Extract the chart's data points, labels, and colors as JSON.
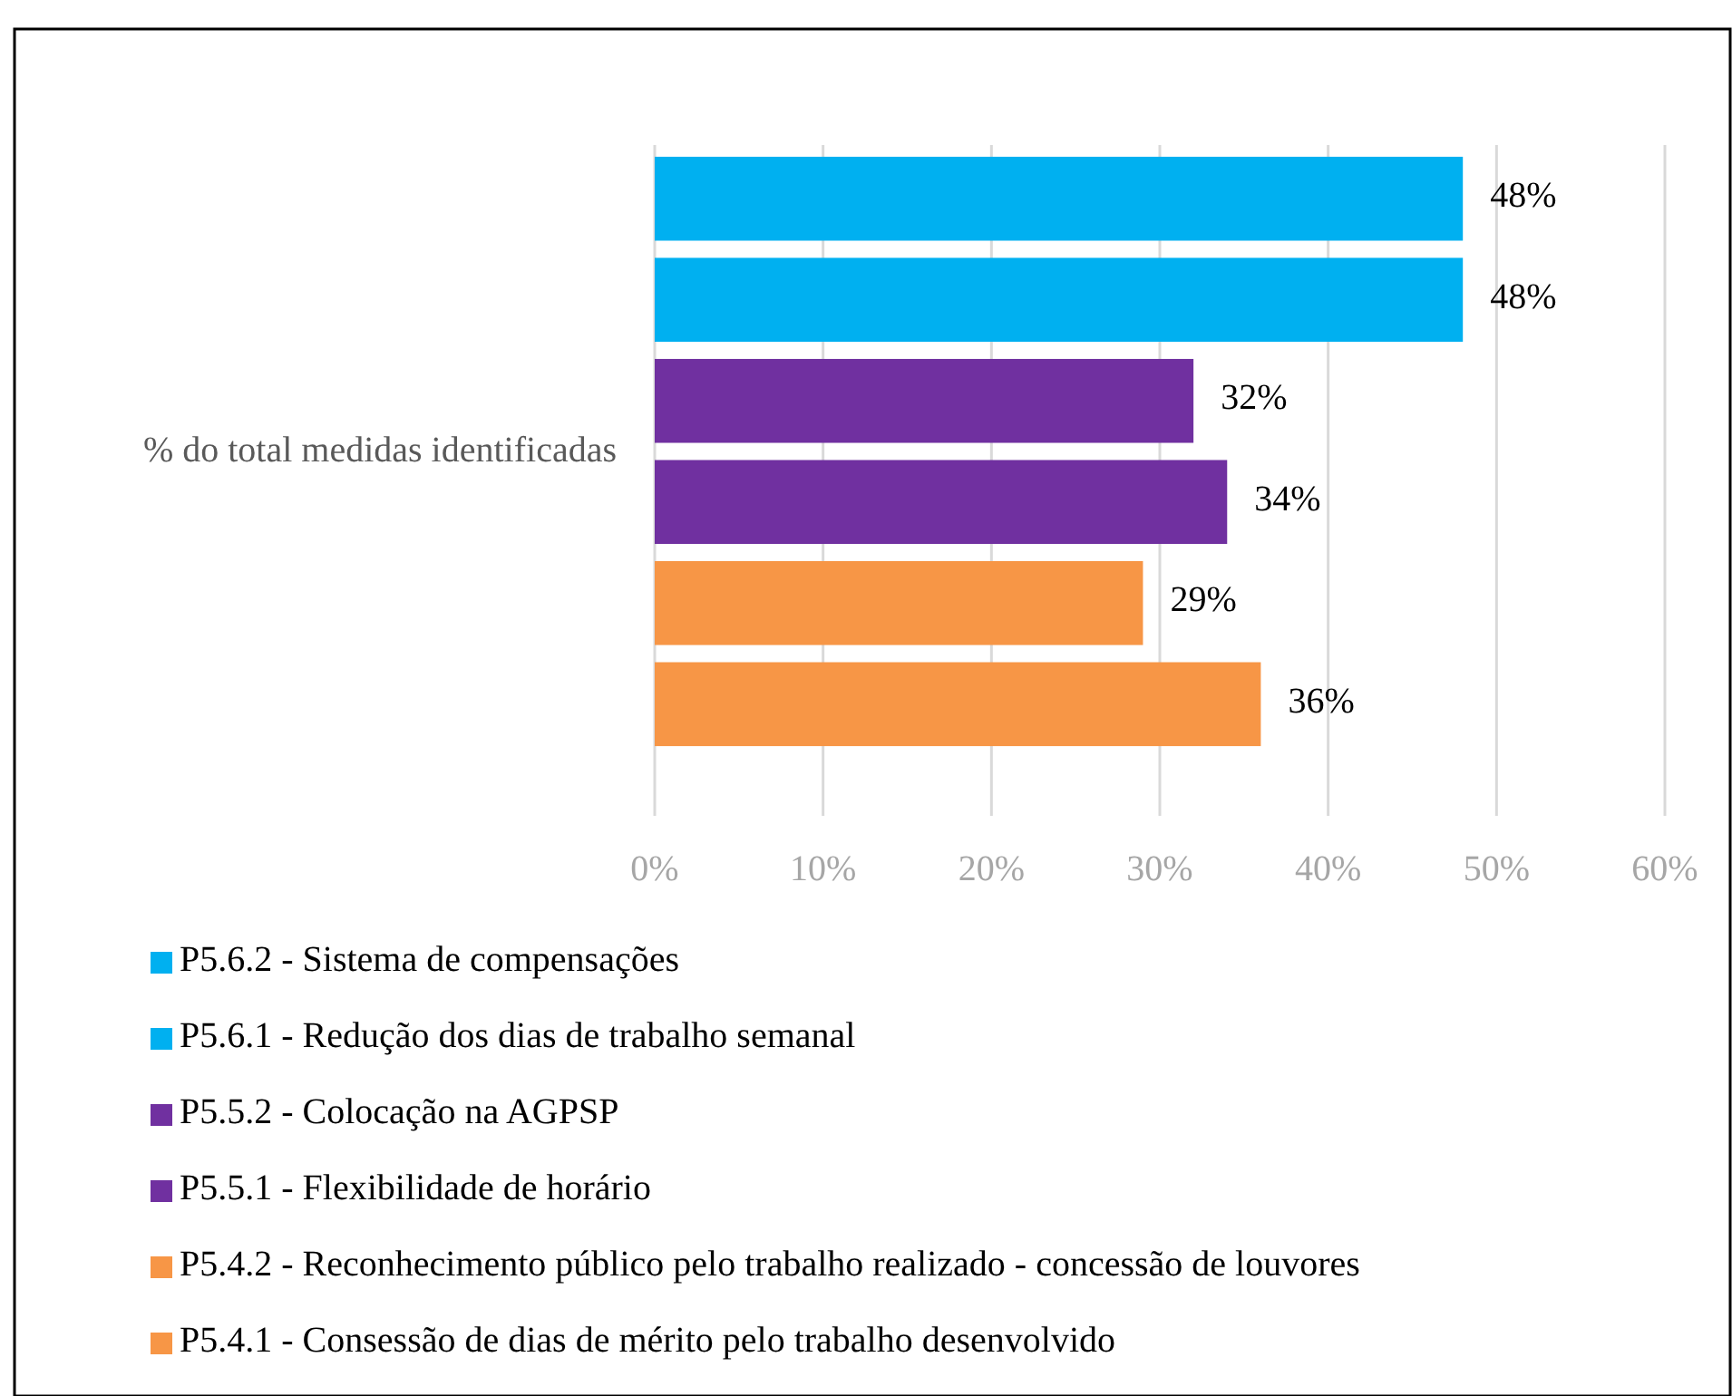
{
  "chart_data": {
    "type": "bar",
    "orientation": "horizontal",
    "ylabel": "% do total medidas identificadas",
    "categories": [
      null,
      null,
      null,
      null,
      null,
      null
    ],
    "series": [
      {
        "name": "P5.6.2 - Sistema de compensações",
        "color": "#00b0f0",
        "values": [
          48,
          null,
          null,
          null,
          null,
          null
        ],
        "value_labels": [
          "48%",
          null,
          null,
          null,
          null,
          null
        ]
      },
      {
        "name": "P5.6.1 - Redução dos dias de trabalho semanal",
        "color": "#00b0f0",
        "values": [
          null,
          48,
          null,
          null,
          null,
          null
        ],
        "value_labels": [
          null,
          "48%",
          null,
          null,
          null,
          null
        ]
      },
      {
        "name": "P5.5.2 - Colocação na AGPSP",
        "color": "#7030a0",
        "values": [
          null,
          null,
          32,
          null,
          null,
          null
        ],
        "value_labels": [
          null,
          null,
          "32%",
          null,
          null,
          null
        ]
      },
      {
        "name": "P5.5.1 - Flexibilidade de horário",
        "color": "#7030a0",
        "values": [
          null,
          null,
          null,
          34,
          null,
          null
        ],
        "value_labels": [
          null,
          null,
          null,
          "34%",
          null,
          null
        ]
      },
      {
        "name": "P5.4.2 - Reconhecimento público pelo trabalho realizado - concessão de louvores",
        "color": "#f79646",
        "values": [
          null,
          null,
          null,
          null,
          29,
          null
        ],
        "value_labels": [
          null,
          null,
          null,
          null,
          "29%",
          null
        ]
      },
      {
        "name": "P5.4.1 - Consessão de dias de mérito pelo trabalho desenvolvido",
        "color": "#f79646",
        "values": [
          null,
          null,
          null,
          null,
          null,
          36
        ],
        "value_labels": [
          null,
          null,
          null,
          null,
          null,
          "36%"
        ]
      }
    ],
    "xlim": [
      0,
      60
    ],
    "xticks": [
      {
        "value": 0,
        "label": "0%"
      },
      {
        "value": 10,
        "label": "10%"
      },
      {
        "value": 20,
        "label": "20%"
      },
      {
        "value": 30,
        "label": "30%"
      },
      {
        "value": 40,
        "label": "40%"
      },
      {
        "value": 50,
        "label": "50%"
      },
      {
        "value": 60,
        "label": "60%"
      }
    ],
    "grid": "x",
    "legend": "bottom"
  }
}
